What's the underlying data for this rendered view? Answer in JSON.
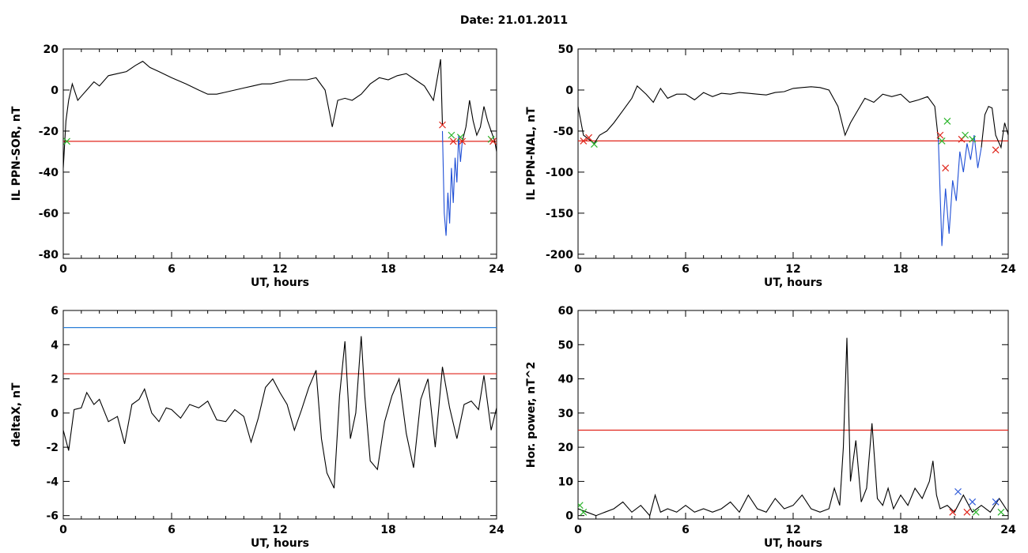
{
  "page": {
    "title": "Date:  21.01.2011"
  },
  "colors": {
    "trace": "#000000",
    "threshold_red": "#e0251b",
    "threshold_blue": "#2c7fd8",
    "marker_red": "#e0251b",
    "marker_green": "#2bb52b",
    "marker_blue": "#2c58d8",
    "segment_blue": "#1f4fd6"
  },
  "chart_data": [
    {
      "id": "sor",
      "type": "line",
      "xlabel": "UT, hours",
      "ylabel": "IL PPN-SOR, nT",
      "xlim": [
        0,
        24
      ],
      "ylim": [
        -82,
        20
      ],
      "xticks": [
        0,
        6,
        12,
        18,
        24
      ],
      "yticks": [
        -80,
        -60,
        -40,
        -20,
        0,
        20
      ],
      "grid": false,
      "threshold_lines": [
        {
          "y": -25,
          "color": "red"
        }
      ],
      "series": [
        {
          "color": "black",
          "x": [
            0,
            0.15,
            0.3,
            0.5,
            0.8,
            1.0,
            1.3,
            1.7,
            2.0,
            2.5,
            3.0,
            3.5,
            4.0,
            4.4,
            4.8,
            5.3,
            6.0,
            6.8,
            7.5,
            8.0,
            8.5,
            9.0,
            9.5,
            10.0,
            10.5,
            11.0,
            11.5,
            12.0,
            12.5,
            13.0,
            13.5,
            14.0,
            14.5,
            14.9,
            15.2,
            15.6,
            16.0,
            16.5,
            17.0,
            17.5,
            18.0,
            18.5,
            19.0,
            19.5,
            20.0,
            20.5,
            20.9,
            21.0
          ],
          "y": [
            -38,
            -15,
            -5,
            3,
            -5,
            -3,
            0,
            4,
            2,
            7,
            8,
            9,
            12,
            14,
            11,
            9,
            6,
            3,
            0,
            -2,
            -2,
            -1,
            0,
            1,
            2,
            3,
            3,
            4,
            5,
            5,
            5,
            6,
            0,
            -18,
            -5,
            -4,
            -5,
            -2,
            3,
            6,
            5,
            7,
            8,
            5,
            2,
            -5,
            15,
            -17
          ]
        },
        {
          "color": "blue",
          "x": [
            21.0,
            21.1,
            21.2,
            21.3,
            21.4,
            21.5,
            21.6,
            21.7,
            21.8,
            21.9,
            22.0,
            22.1
          ],
          "y": [
            -20,
            -60,
            -71,
            -50,
            -65,
            -38,
            -55,
            -33,
            -45,
            -22,
            -35,
            -25
          ]
        },
        {
          "color": "black",
          "x": [
            22.1,
            22.3,
            22.5,
            22.7,
            22.9,
            23.1,
            23.3,
            23.5,
            23.7,
            23.9,
            24.0
          ],
          "y": [
            -25,
            -18,
            -5,
            -15,
            -22,
            -18,
            -8,
            -15,
            -20,
            -25,
            -30
          ]
        }
      ],
      "markers": [
        {
          "x": 0.2,
          "y": -25,
          "color": "green"
        },
        {
          "x": 21.0,
          "y": -17,
          "color": "red"
        },
        {
          "x": 21.5,
          "y": -22,
          "color": "green"
        },
        {
          "x": 21.6,
          "y": -25,
          "color": "red"
        },
        {
          "x": 22.0,
          "y": -23,
          "color": "green"
        },
        {
          "x": 22.1,
          "y": -25,
          "color": "red"
        },
        {
          "x": 23.7,
          "y": -24,
          "color": "green"
        },
        {
          "x": 23.8,
          "y": -25,
          "color": "red"
        }
      ]
    },
    {
      "id": "nal",
      "type": "line",
      "xlabel": "UT, hours",
      "ylabel": "IL PPN-NAL, nT",
      "xlim": [
        0,
        24
      ],
      "ylim": [
        -205,
        50
      ],
      "xticks": [
        0,
        6,
        12,
        18,
        24
      ],
      "yticks": [
        -200,
        -150,
        -100,
        -50,
        0,
        50
      ],
      "grid": false,
      "threshold_lines": [
        {
          "y": -62,
          "color": "red"
        }
      ],
      "series": [
        {
          "color": "black",
          "x": [
            0,
            0.3,
            0.6,
            0.9,
            1.2,
            1.6,
            2.0,
            2.5,
            3.0,
            3.3,
            3.8,
            4.2,
            4.6,
            5.0,
            5.5,
            6.0,
            6.5,
            7.0,
            7.5,
            8.0,
            8.5,
            9.0,
            9.5,
            10.0,
            10.5,
            11.0,
            11.5,
            12.0,
            12.5,
            13.0,
            13.5,
            14.0,
            14.5,
            14.9,
            15.2,
            15.6,
            16.0,
            16.5,
            17.0,
            17.5,
            18.0,
            18.5,
            19.0,
            19.5,
            19.9,
            20.1
          ],
          "y": [
            -20,
            -55,
            -60,
            -65,
            -55,
            -50,
            -40,
            -25,
            -10,
            5,
            -5,
            -15,
            2,
            -10,
            -5,
            -5,
            -12,
            -3,
            -8,
            -4,
            -5,
            -3,
            -4,
            -5,
            -6,
            -3,
            -2,
            2,
            3,
            4,
            3,
            0,
            -20,
            -55,
            -40,
            -25,
            -10,
            -15,
            -5,
            -8,
            -5,
            -15,
            -12,
            -8,
            -20,
            -60
          ]
        },
        {
          "color": "blue",
          "x": [
            20.1,
            20.3,
            20.5,
            20.7,
            20.9,
            21.1,
            21.3,
            21.5,
            21.7,
            21.9,
            22.1,
            22.3,
            22.5
          ],
          "y": [
            -60,
            -190,
            -120,
            -175,
            -110,
            -135,
            -75,
            -100,
            -65,
            -85,
            -55,
            -95,
            -70
          ]
        },
        {
          "color": "black",
          "x": [
            22.5,
            22.7,
            22.9,
            23.1,
            23.3,
            23.6,
            23.8,
            24.0
          ],
          "y": [
            -70,
            -30,
            -20,
            -22,
            -55,
            -70,
            -40,
            -55
          ]
        }
      ],
      "markers": [
        {
          "x": 0.3,
          "y": -62,
          "color": "red"
        },
        {
          "x": 0.6,
          "y": -58,
          "color": "red"
        },
        {
          "x": 0.9,
          "y": -66,
          "color": "green"
        },
        {
          "x": 20.2,
          "y": -55,
          "color": "red"
        },
        {
          "x": 20.3,
          "y": -62,
          "color": "green"
        },
        {
          "x": 20.5,
          "y": -95,
          "color": "red"
        },
        {
          "x": 20.6,
          "y": -38,
          "color": "green"
        },
        {
          "x": 21.4,
          "y": -60,
          "color": "red"
        },
        {
          "x": 21.6,
          "y": -55,
          "color": "green"
        },
        {
          "x": 22.0,
          "y": -60,
          "color": "green"
        },
        {
          "x": 23.3,
          "y": -73,
          "color": "red"
        }
      ]
    },
    {
      "id": "deltax",
      "type": "line",
      "xlabel": "UT, hours",
      "ylabel": "deltaX, nT",
      "xlim": [
        0,
        24
      ],
      "ylim": [
        -6.2,
        6
      ],
      "xticks": [
        0,
        6,
        12,
        18,
        24
      ],
      "yticks": [
        -6,
        -4,
        -2,
        0,
        2,
        4,
        6
      ],
      "grid": false,
      "threshold_lines": [
        {
          "y": 5.0,
          "color": "blue"
        },
        {
          "y": 2.3,
          "color": "red"
        }
      ],
      "series": [
        {
          "color": "black",
          "x": [
            0,
            0.3,
            0.6,
            1.0,
            1.3,
            1.7,
            2.0,
            2.5,
            3.0,
            3.4,
            3.8,
            4.2,
            4.5,
            4.9,
            5.3,
            5.7,
            6.0,
            6.5,
            7.0,
            7.5,
            8.0,
            8.5,
            9.0,
            9.5,
            10.0,
            10.4,
            10.8,
            11.2,
            11.6,
            12.0,
            12.4,
            12.8,
            13.2,
            13.6,
            14.0,
            14.3,
            14.6,
            15.0,
            15.3,
            15.6,
            15.9,
            16.2,
            16.5,
            16.7,
            17.0,
            17.4,
            17.8,
            18.2,
            18.6,
            19.0,
            19.4,
            19.8,
            20.2,
            20.6,
            21.0,
            21.4,
            21.8,
            22.2,
            22.6,
            23.0,
            23.3,
            23.7,
            24.0
          ],
          "y": [
            -1,
            -2.2,
            0.2,
            0.3,
            1.2,
            0.5,
            0.8,
            -0.5,
            -0.2,
            -1.8,
            0.5,
            0.8,
            1.4,
            0,
            -0.5,
            0.3,
            0.2,
            -0.3,
            0.5,
            0.3,
            0.7,
            -0.4,
            -0.5,
            0.2,
            -0.2,
            -1.7,
            -0.3,
            1.5,
            2.0,
            1.2,
            0.5,
            -1.0,
            0.2,
            1.5,
            2.5,
            -1.5,
            -3.5,
            -4.4,
            1.0,
            4.2,
            -1.5,
            0.0,
            4.5,
            1.0,
            -2.8,
            -3.3,
            -0.5,
            1.0,
            2.0,
            -1.2,
            -3.2,
            0.8,
            2.0,
            -2.0,
            2.7,
            0.3,
            -1.5,
            0.5,
            0.7,
            0.2,
            2.2,
            -1.0,
            0.3
          ]
        }
      ],
      "markers": []
    },
    {
      "id": "power",
      "type": "line",
      "xlabel": "UT, hours",
      "ylabel": "Hor. power, nT^2",
      "xlim": [
        0,
        24
      ],
      "ylim": [
        -1,
        60
      ],
      "xticks": [
        0,
        6,
        12,
        18,
        24
      ],
      "yticks": [
        0,
        10,
        20,
        30,
        40,
        50,
        60
      ],
      "grid": false,
      "threshold_lines": [
        {
          "y": 25,
          "color": "red"
        }
      ],
      "series": [
        {
          "color": "black",
          "x": [
            0,
            0.5,
            1.0,
            1.5,
            2.0,
            2.5,
            3.0,
            3.5,
            4.0,
            4.3,
            4.6,
            5.0,
            5.5,
            6.0,
            6.5,
            7.0,
            7.5,
            8.0,
            8.5,
            9.0,
            9.5,
            10.0,
            10.5,
            11.0,
            11.5,
            12.0,
            12.5,
            13.0,
            13.5,
            14.0,
            14.3,
            14.6,
            14.8,
            15.0,
            15.2,
            15.5,
            15.8,
            16.1,
            16.4,
            16.7,
            17.0,
            17.3,
            17.6,
            18.0,
            18.4,
            18.8,
            19.2,
            19.6,
            19.8,
            20.0,
            20.2,
            20.6,
            21.0,
            21.5,
            22.0,
            22.5,
            23.0,
            23.5,
            24.0
          ],
          "y": [
            2,
            1,
            0,
            1,
            2,
            4,
            1,
            3,
            0,
            6,
            1,
            2,
            1,
            3,
            1,
            2,
            1,
            2,
            4,
            1,
            6,
            2,
            1,
            5,
            2,
            3,
            6,
            2,
            1,
            2,
            8,
            3,
            20,
            52,
            10,
            22,
            4,
            8,
            27,
            5,
            3,
            8,
            2,
            6,
            3,
            8,
            5,
            10,
            16,
            6,
            2,
            3,
            1,
            6,
            1,
            3,
            1,
            5,
            1
          ]
        }
      ],
      "markers": [
        {
          "x": 0.1,
          "y": 3,
          "color": "green"
        },
        {
          "x": 0.3,
          "y": 1,
          "color": "green"
        },
        {
          "x": 20.9,
          "y": 1,
          "color": "red"
        },
        {
          "x": 21.2,
          "y": 7,
          "color": "blue"
        },
        {
          "x": 21.7,
          "y": 1,
          "color": "red"
        },
        {
          "x": 22.0,
          "y": 4,
          "color": "blue"
        },
        {
          "x": 22.2,
          "y": 1,
          "color": "green"
        },
        {
          "x": 23.3,
          "y": 4,
          "color": "blue"
        },
        {
          "x": 23.6,
          "y": 1,
          "color": "green"
        }
      ]
    }
  ]
}
